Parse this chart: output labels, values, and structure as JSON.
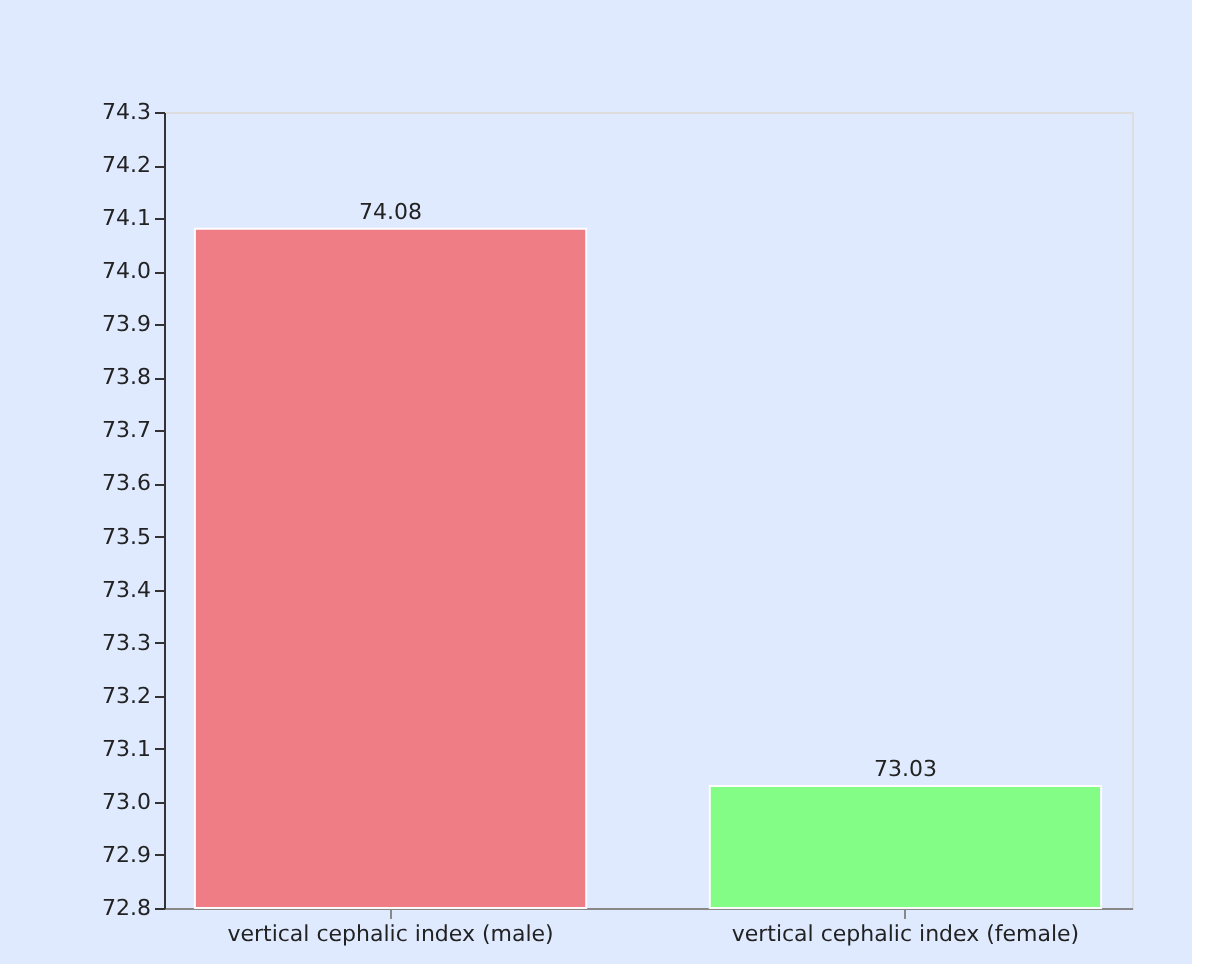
{
  "chart_data": {
    "type": "bar",
    "categories": [
      "vertical cephalic index (male)",
      "vertical cephalic index (female)"
    ],
    "values": [
      74.08,
      73.03
    ],
    "colors": [
      "#f07880",
      "#80ff80"
    ],
    "ylim": [
      72.8,
      74.3
    ],
    "yticks": [
      {
        "value": 72.8,
        "label": "72.8"
      },
      {
        "value": 72.9,
        "label": "72.9"
      },
      {
        "value": 73.0,
        "label": "73.0"
      },
      {
        "value": 73.1,
        "label": "73.1"
      },
      {
        "value": 73.2,
        "label": "73.2"
      },
      {
        "value": 73.3,
        "label": "73.3"
      },
      {
        "value": 73.4,
        "label": "73.4"
      },
      {
        "value": 73.5,
        "label": "73.5"
      },
      {
        "value": 73.6,
        "label": "73.6"
      },
      {
        "value": 73.7,
        "label": "73.7"
      },
      {
        "value": 73.8,
        "label": "73.8"
      },
      {
        "value": 73.9,
        "label": "73.9"
      },
      {
        "value": 74.0,
        "label": "74.0"
      },
      {
        "value": 74.1,
        "label": "74.1"
      },
      {
        "value": 74.2,
        "label": "74.2"
      },
      {
        "value": 74.3,
        "label": "74.3"
      }
    ],
    "data_labels": true,
    "grid": false
  }
}
